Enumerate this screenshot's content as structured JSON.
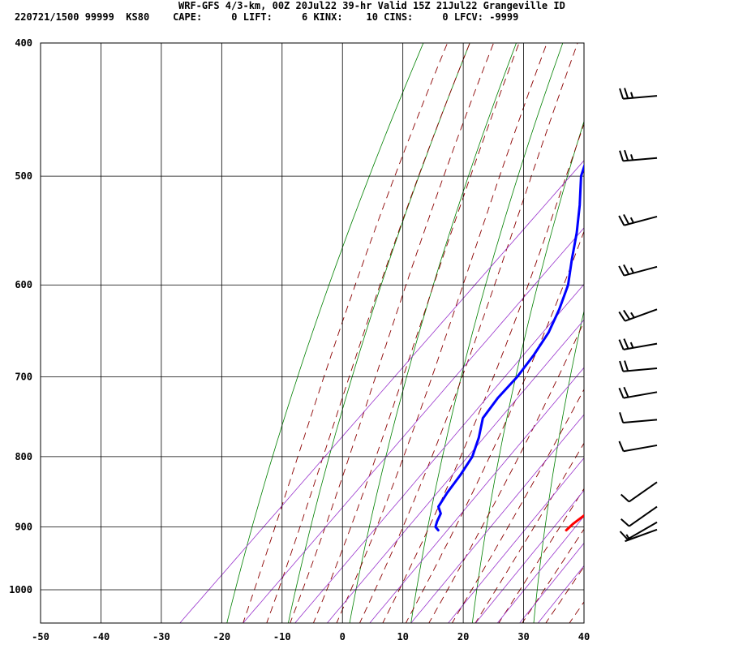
{
  "header": {
    "title": "WRF-GFS 4/3-km, 00Z 20Jul22 39-hr Valid 15Z 21Jul22 Grangeville ID",
    "stats": "220721/1500 99999  KS80    CAPE:     0 LIFT:     6 KINX:    10 CINS:     0 LFCV: -9999"
  },
  "colors": {
    "temperature": "#ff0000",
    "dewpoint": "#0000ff",
    "dry_adiabat": "#008000",
    "moist_adiabat": "#8b0000",
    "mixing_ratio": "#9933cc",
    "grid": "#000000",
    "wind_barb": "#000000"
  },
  "chart_data": {
    "type": "skew-t",
    "x_axis": {
      "ticks": [
        -50,
        -40,
        -30,
        -20,
        -10,
        0,
        10,
        20,
        30,
        40
      ],
      "range": [
        -50,
        40
      ],
      "unit": "°C"
    },
    "y_axis": {
      "ticks": [
        400,
        500,
        600,
        700,
        800,
        900,
        1000
      ],
      "range": [
        400,
        1040
      ],
      "unit": "hPa",
      "scale": "log",
      "inverted": true
    },
    "grid": true,
    "series": [
      {
        "key": "temperature",
        "points": [
          {
            "p": 437,
            "t": -17.5
          },
          {
            "p": 470,
            "t": -15
          },
          {
            "p": 500,
            "t": -12.3
          },
          {
            "p": 525,
            "t": -10
          },
          {
            "p": 550,
            "t": -7.5
          },
          {
            "p": 575,
            "t": -4.8
          },
          {
            "p": 600,
            "t": -1.8
          },
          {
            "p": 625,
            "t": 0.6
          },
          {
            "p": 650,
            "t": 3.3
          },
          {
            "p": 675,
            "t": 6.3
          },
          {
            "p": 700,
            "t": 8.8
          },
          {
            "p": 725,
            "t": 11.3
          },
          {
            "p": 750,
            "t": 13.7
          },
          {
            "p": 775,
            "t": 16
          },
          {
            "p": 800,
            "t": 18.2
          },
          {
            "p": 825,
            "t": 20
          },
          {
            "p": 850,
            "t": 21.5
          },
          {
            "p": 870,
            "t": 22.5
          },
          {
            "p": 882,
            "t": 22.6
          },
          {
            "p": 895,
            "t": 22.1
          },
          {
            "p": 905,
            "t": 22
          }
        ]
      },
      {
        "key": "dewpoint",
        "points": [
          {
            "p": 437,
            "t": -42
          },
          {
            "p": 470,
            "t": -37
          },
          {
            "p": 500,
            "t": -33
          },
          {
            "p": 525,
            "t": -28.5
          },
          {
            "p": 550,
            "t": -24.5
          },
          {
            "p": 575,
            "t": -21
          },
          {
            "p": 600,
            "t": -17.5
          },
          {
            "p": 625,
            "t": -15
          },
          {
            "p": 650,
            "t": -13
          },
          {
            "p": 675,
            "t": -11.8
          },
          {
            "p": 700,
            "t": -11
          },
          {
            "p": 725,
            "t": -10.8
          },
          {
            "p": 750,
            "t": -10
          },
          {
            "p": 775,
            "t": -7.5
          },
          {
            "p": 800,
            "t": -5.5
          },
          {
            "p": 825,
            "t": -4.5
          },
          {
            "p": 850,
            "t": -3.8
          },
          {
            "p": 870,
            "t": -3
          },
          {
            "p": 880,
            "t": -1.5
          },
          {
            "p": 892,
            "t": -0.8
          },
          {
            "p": 900,
            "t": -0.2
          },
          {
            "p": 905,
            "t": 0.8
          }
        ]
      }
    ],
    "wind_barbs": [
      {
        "p": 437,
        "dir": 265,
        "kt": 25
      },
      {
        "p": 485,
        "dir": 265,
        "kt": 25
      },
      {
        "p": 535,
        "dir": 255,
        "kt": 25
      },
      {
        "p": 582,
        "dir": 255,
        "kt": 25
      },
      {
        "p": 625,
        "dir": 250,
        "kt": 25
      },
      {
        "p": 662,
        "dir": 260,
        "kt": 25
      },
      {
        "p": 690,
        "dir": 265,
        "kt": 20
      },
      {
        "p": 718,
        "dir": 260,
        "kt": 20
      },
      {
        "p": 752,
        "dir": 265,
        "kt": 10
      },
      {
        "p": 785,
        "dir": 260,
        "kt": 10
      },
      {
        "p": 835,
        "dir": 235,
        "kt": 10
      },
      {
        "p": 870,
        "dir": 235,
        "kt": 10
      },
      {
        "p": 893,
        "dir": 240,
        "kt": 10
      },
      {
        "p": 904,
        "dir": 250,
        "kt": 5
      }
    ]
  }
}
